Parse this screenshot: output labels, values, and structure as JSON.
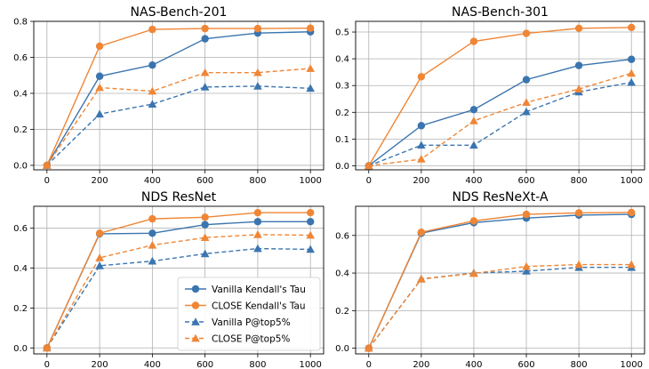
{
  "chart_data": [
    {
      "type": "line",
      "title": "NAS-Bench-201",
      "x": [
        0,
        200,
        400,
        600,
        800,
        1000
      ],
      "xticks": [
        "0",
        "200",
        "400",
        "600",
        "800",
        "1000"
      ],
      "ylim": [
        -0.025,
        0.8
      ],
      "yticks": [
        "0.0",
        "0.2",
        "0.4",
        "0.6",
        "0.8"
      ],
      "ytick_values": [
        0.0,
        0.2,
        0.4,
        0.6,
        0.8
      ],
      "grid": true,
      "series": [
        {
          "name": "Vanilla Kendall's Tau",
          "color": "#3b75af",
          "marker": "circle",
          "dash": false,
          "values": [
            0.0,
            0.495,
            0.557,
            0.703,
            0.735,
            0.742
          ]
        },
        {
          "name": "CLOSE Kendall's Tau",
          "color": "#ef8636",
          "marker": "circle",
          "dash": false,
          "values": [
            0.0,
            0.662,
            0.755,
            0.76,
            0.76,
            0.762
          ]
        },
        {
          "name": "Vanilla P@top5%",
          "color": "#3b75af",
          "marker": "triangle",
          "dash": true,
          "values": [
            0.0,
            0.285,
            0.34,
            0.435,
            0.44,
            0.428
          ]
        },
        {
          "name": "CLOSE P@top5%",
          "color": "#ef8636",
          "marker": "triangle",
          "dash": true,
          "values": [
            0.0,
            0.432,
            0.412,
            0.515,
            0.515,
            0.538
          ]
        }
      ]
    },
    {
      "type": "line",
      "title": "NAS-Bench-301",
      "x": [
        0,
        200,
        400,
        600,
        800,
        1000
      ],
      "xticks": [
        "0",
        "200",
        "400",
        "600",
        "800",
        "1000"
      ],
      "ylim": [
        -0.015,
        0.54
      ],
      "yticks": [
        "0.0",
        "0.1",
        "0.2",
        "0.3",
        "0.4",
        "0.5"
      ],
      "ytick_values": [
        0.0,
        0.1,
        0.2,
        0.3,
        0.4,
        0.5
      ],
      "grid": true,
      "series": [
        {
          "name": "Vanilla Kendall's Tau",
          "color": "#3b75af",
          "marker": "circle",
          "dash": false,
          "values": [
            0.0,
            0.15,
            0.21,
            0.322,
            0.375,
            0.398
          ]
        },
        {
          "name": "CLOSE Kendall's Tau",
          "color": "#ef8636",
          "marker": "circle",
          "dash": false,
          "values": [
            0.0,
            0.333,
            0.465,
            0.495,
            0.514,
            0.517
          ]
        },
        {
          "name": "Vanilla P@top5%",
          "color": "#3b75af",
          "marker": "triangle",
          "dash": true,
          "values": [
            0.0,
            0.077,
            0.077,
            0.202,
            0.276,
            0.312
          ]
        },
        {
          "name": "CLOSE P@top5%",
          "color": "#ef8636",
          "marker": "triangle",
          "dash": true,
          "values": [
            0.0,
            0.025,
            0.168,
            0.237,
            0.287,
            0.346
          ]
        }
      ]
    },
    {
      "type": "line",
      "title": "NDS ResNet",
      "x": [
        0,
        200,
        400,
        600,
        800,
        1000
      ],
      "xticks": [
        "0",
        "200",
        "400",
        "600",
        "800",
        "1000"
      ],
      "ylim": [
        -0.03,
        0.71
      ],
      "yticks": [
        "0.0",
        "0.2",
        "0.4",
        "0.6"
      ],
      "ytick_values": [
        0.0,
        0.2,
        0.4,
        0.6
      ],
      "grid": true,
      "legend": "lower-right",
      "series": [
        {
          "name": "Vanilla Kendall's Tau",
          "color": "#3b75af",
          "marker": "circle",
          "dash": false,
          "values": [
            0.0,
            0.572,
            0.575,
            0.618,
            0.633,
            0.633
          ]
        },
        {
          "name": "CLOSE Kendall's Tau",
          "color": "#ef8636",
          "marker": "circle",
          "dash": false,
          "values": [
            0.0,
            0.575,
            0.647,
            0.655,
            0.678,
            0.678
          ]
        },
        {
          "name": "Vanilla P@top5%",
          "color": "#3b75af",
          "marker": "triangle",
          "dash": true,
          "values": [
            0.0,
            0.412,
            0.435,
            0.472,
            0.498,
            0.494
          ]
        },
        {
          "name": "CLOSE P@top5%",
          "color": "#ef8636",
          "marker": "triangle",
          "dash": true,
          "values": [
            0.0,
            0.452,
            0.515,
            0.553,
            0.568,
            0.565
          ]
        }
      ]
    },
    {
      "type": "line",
      "title": "NDS ResNeXt-A",
      "x": [
        0,
        200,
        400,
        600,
        800,
        1000
      ],
      "xticks": [
        "0",
        "200",
        "400",
        "600",
        "800",
        "1000"
      ],
      "ylim": [
        -0.03,
        0.755
      ],
      "yticks": [
        "0.0",
        "0.2",
        "0.4",
        "0.6"
      ],
      "ytick_values": [
        0.0,
        0.2,
        0.4,
        0.6
      ],
      "grid": true,
      "series": [
        {
          "name": "Vanilla Kendall's Tau",
          "color": "#3b75af",
          "marker": "circle",
          "dash": false,
          "values": [
            0.0,
            0.612,
            0.668,
            0.692,
            0.708,
            0.712
          ]
        },
        {
          "name": "CLOSE Kendall's Tau",
          "color": "#ef8636",
          "marker": "circle",
          "dash": false,
          "values": [
            0.0,
            0.617,
            0.677,
            0.712,
            0.72,
            0.722
          ]
        },
        {
          "name": "Vanilla P@top5%",
          "color": "#3b75af",
          "marker": "triangle",
          "dash": true,
          "values": [
            0.0,
            0.368,
            0.4,
            0.41,
            0.43,
            0.43
          ]
        },
        {
          "name": "CLOSE P@top5%",
          "color": "#ef8636",
          "marker": "triangle",
          "dash": true,
          "values": [
            0.0,
            0.368,
            0.398,
            0.435,
            0.445,
            0.445
          ]
        }
      ]
    }
  ]
}
